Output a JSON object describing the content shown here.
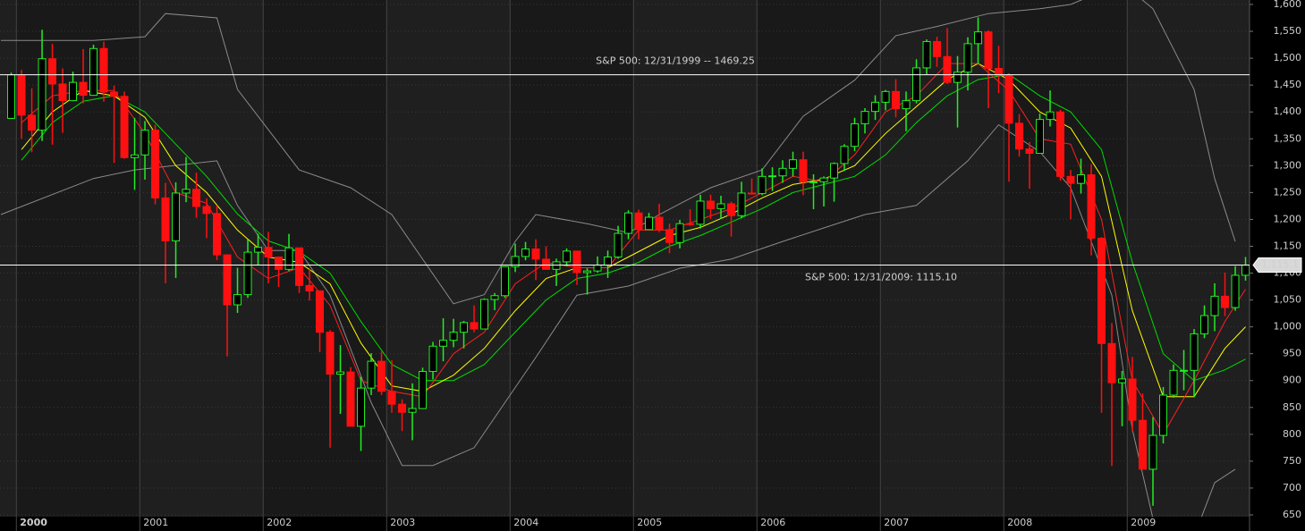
{
  "chart_data": {
    "type": "candlestick",
    "up_color": "#22ee22",
    "down_color": "#ff1010",
    "grid": true,
    "xlim": [
      -2.09,
      119.39
    ],
    "ylim": [
      650,
      1600
    ],
    "xticks": [
      {
        "value": -0.5,
        "label": "2000"
      },
      {
        "value": 11.5,
        "label": "2001"
      },
      {
        "value": 23.5,
        "label": "2002"
      },
      {
        "value": 35.5,
        "label": "2003"
      },
      {
        "value": 47.5,
        "label": "2004"
      },
      {
        "value": 59.5,
        "label": "2005"
      },
      {
        "value": 71.5,
        "label": "2006"
      },
      {
        "value": 83.5,
        "label": "2007"
      },
      {
        "value": 95.5,
        "label": "2008"
      },
      {
        "value": 107.5,
        "label": "2009"
      }
    ],
    "yticks": [
      650,
      700,
      750,
      800,
      850,
      900,
      950,
      {
        "value": 1000,
        "label": "1,000"
      },
      {
        "value": 1050,
        "label": "1,050"
      },
      {
        "value": 1100,
        "label": "1,100"
      },
      {
        "value": 1150,
        "label": "1,150"
      },
      {
        "value": 1200,
        "label": "1,200"
      },
      {
        "value": 1250,
        "label": "1,250"
      },
      {
        "value": 1300,
        "label": "1,300"
      },
      {
        "value": 1350,
        "label": "1,350"
      },
      {
        "value": 1400,
        "label": "1,400"
      },
      {
        "value": 1450,
        "label": "1,450"
      },
      {
        "value": 1500,
        "label": "1,500"
      },
      {
        "value": 1550,
        "label": "1,550"
      },
      {
        "value": 1600,
        "label": "1,600"
      }
    ],
    "annotations": [
      {
        "value": 1469.25,
        "label": "S&P 500: 12/31/1999 -- 1469.25"
      },
      {
        "value": 1115.1,
        "label": "S&P 500: 12/31/2009: 1115.10"
      }
    ],
    "last_price": {
      "value": 1115.1,
      "label": "1,115.1"
    },
    "x": [
      -1,
      0,
      1,
      2,
      3,
      4,
      5,
      6,
      7,
      8,
      9,
      10,
      11,
      12,
      13,
      14,
      15,
      16,
      17,
      18,
      19,
      20,
      21,
      22,
      23,
      24,
      25,
      26,
      27,
      28,
      29,
      30,
      31,
      32,
      33,
      34,
      35,
      36,
      37,
      38,
      39,
      40,
      41,
      42,
      43,
      44,
      45,
      46,
      47,
      48,
      49,
      50,
      51,
      52,
      53,
      54,
      55,
      56,
      57,
      58,
      59,
      60,
      61,
      62,
      63,
      64,
      65,
      66,
      67,
      68,
      69,
      70,
      71,
      72,
      73,
      74,
      75,
      76,
      77,
      78,
      79,
      80,
      81,
      82,
      83,
      84,
      85,
      86,
      87,
      88,
      89,
      90,
      91,
      92,
      93,
      94,
      95,
      96,
      97,
      98,
      99,
      100,
      101,
      102,
      103,
      104,
      105,
      106,
      107,
      108,
      109,
      110,
      111,
      112,
      113,
      114,
      115,
      116,
      117,
      118,
      119
    ],
    "open": [
      1388,
      1469,
      1394,
      1366,
      1499,
      1452,
      1421,
      1455,
      1431,
      1518,
      1437,
      1429,
      1315,
      1320,
      1366,
      1240,
      1160,
      1249,
      1256,
      1224,
      1211,
      1134,
      1041,
      1060,
      1139,
      1148,
      1130,
      1107,
      1147,
      1077,
      1067,
      990,
      912,
      916,
      815,
      886,
      936,
      880,
      856,
      841,
      848,
      917,
      964,
      975,
      990,
      1008,
      996,
      1051,
      1058,
      1112,
      1131,
      1145,
      1126,
      1107,
      1121,
      1141,
      1101,
      1104,
      1115,
      1130,
      1174,
      1212,
      1181,
      1204,
      1181,
      1157,
      1192,
      1191,
      1234,
      1220,
      1229,
      1207,
      1249,
      1248,
      1280,
      1281,
      1295,
      1311,
      1270,
      1270,
      1277,
      1304,
      1336,
      1378,
      1401,
      1418,
      1438,
      1406,
      1421,
      1482,
      1531,
      1503,
      1455,
      1474,
      1527,
      1549,
      1481,
      1468,
      1379,
      1331,
      1323,
      1386,
      1400,
      1280,
      1267,
      1283,
      1165,
      969,
      896,
      903,
      826,
      735,
      798,
      873,
      919,
      919,
      987,
      1021,
      1057,
      1036,
      1096
    ],
    "high": [
      1473,
      1478,
      1444,
      1553,
      1527,
      1481,
      1475,
      1517,
      1525,
      1531,
      1449,
      1438,
      1389,
      1383,
      1376,
      1268,
      1269,
      1316,
      1287,
      1239,
      1226,
      1135,
      1110,
      1163,
      1173,
      1177,
      1130,
      1173,
      1147,
      1107,
      1067,
      994,
      966,
      925,
      907,
      951,
      954,
      938,
      865,
      895,
      924,
      972,
      1016,
      1015,
      1011,
      1040,
      1053,
      1063,
      1112,
      1155,
      1158,
      1163,
      1150,
      1127,
      1146,
      1141,
      1109,
      1131,
      1142,
      1188,
      1217,
      1218,
      1212,
      1229,
      1192,
      1199,
      1219,
      1246,
      1246,
      1244,
      1233,
      1270,
      1276,
      1295,
      1297,
      1310,
      1326,
      1326,
      1284,
      1280,
      1306,
      1340,
      1389,
      1407,
      1431,
      1441,
      1461,
      1438,
      1498,
      1535,
      1540,
      1556,
      1504,
      1539,
      1576,
      1552,
      1523,
      1472,
      1396,
      1344,
      1397,
      1440,
      1404,
      1292,
      1313,
      1303,
      1167,
      1007,
      918,
      944,
      876,
      832,
      888,
      930,
      957,
      996,
      1040,
      1081,
      1101,
      1113,
      1130
    ],
    "low": [
      1387,
      1350,
      1325,
      1346,
      1339,
      1361,
      1420,
      1416,
      1431,
      1419,
      1305,
      1313,
      1255,
      1274,
      1228,
      1081,
      1091,
      1232,
      1203,
      1165,
      1124,
      945,
      1026,
      1054,
      1115,
      1081,
      1074,
      1104,
      1063,
      1049,
      953,
      775,
      838,
      815,
      769,
      873,
      873,
      840,
      806,
      789,
      847,
      902,
      936,
      962,
      960,
      990,
      996,
      1031,
      1054,
      1102,
      1124,
      1087,
      1107,
      1076,
      1113,
      1078,
      1060,
      1101,
      1091,
      1127,
      1163,
      1163,
      1180,
      1176,
      1137,
      1146,
      1188,
      1183,
      1201,
      1201,
      1168,
      1202,
      1246,
      1245,
      1253,
      1268,
      1280,
      1245,
      1219,
      1224,
      1233,
      1290,
      1327,
      1360,
      1385,
      1403,
      1390,
      1364,
      1416,
      1470,
      1484,
      1452,
      1371,
      1440,
      1489,
      1407,
      1435,
      1270,
      1317,
      1257,
      1323,
      1373,
      1272,
      1200,
      1248,
      1133,
      840,
      741,
      815,
      806,
      735,
      667,
      783,
      868,
      882,
      869,
      979,
      992,
      1020,
      1030,
      1086
    ],
    "close": [
      1469,
      1394,
      1366,
      1499,
      1452,
      1421,
      1455,
      1431,
      1518,
      1437,
      1429,
      1315,
      1320,
      1366,
      1240,
      1160,
      1249,
      1256,
      1224,
      1211,
      1134,
      1041,
      1060,
      1139,
      1148,
      1130,
      1107,
      1147,
      1077,
      1067,
      990,
      912,
      916,
      815,
      886,
      936,
      880,
      856,
      841,
      848,
      917,
      964,
      975,
      990,
      1008,
      996,
      1051,
      1058,
      1112,
      1131,
      1145,
      1126,
      1107,
      1121,
      1141,
      1101,
      1104,
      1115,
      1130,
      1174,
      1212,
      1181,
      1204,
      1181,
      1157,
      1192,
      1191,
      1234,
      1220,
      1229,
      1207,
      1249,
      1248,
      1280,
      1281,
      1295,
      1311,
      1270,
      1270,
      1277,
      1304,
      1336,
      1378,
      1401,
      1418,
      1438,
      1406,
      1421,
      1482,
      1531,
      1503,
      1455,
      1474,
      1527,
      1549,
      1481,
      1468,
      1379,
      1331,
      1323,
      1386,
      1400,
      1280,
      1267,
      1283,
      1165,
      969,
      896,
      903,
      826,
      735,
      798,
      873,
      919,
      919,
      987,
      1021,
      1057,
      1036,
      1096,
      1115
    ],
    "overlays": [
      {
        "color": "#8a8a8a",
        "x": [
          -2,
          7,
          12,
          14,
          19,
          21,
          27,
          32,
          36,
          39,
          42,
          45,
          48,
          50,
          55,
          59,
          62,
          67,
          72,
          76,
          81,
          85,
          89,
          94,
          99,
          102,
          107,
          110,
          114,
          116,
          118
        ],
        "values": [
          1533,
          1533,
          1540,
          1583,
          1575,
          1442,
          1292,
          1259,
          1209,
          1126,
          1043,
          1060,
          1159,
          1209,
          1192,
          1175,
          1209,
          1259,
          1292,
          1392,
          1459,
          1542,
          1559,
          1583,
          1592,
          1600,
          1640,
          1592,
          1442,
          1276,
          1159
        ]
      },
      {
        "color": "#8a8a8a",
        "x": [
          -2,
          7,
          11,
          19,
          21,
          24,
          27,
          30,
          34,
          37,
          40,
          44,
          47,
          50,
          54,
          59,
          64,
          69,
          74,
          78,
          82,
          87,
          92,
          95,
          99,
          102,
          106,
          108,
          110,
          114,
          116,
          118
        ],
        "values": [
          1209,
          1276,
          1292,
          1309,
          1226,
          1142,
          1142,
          1059,
          859,
          742,
          742,
          775,
          859,
          943,
          1059,
          1076,
          1109,
          1126,
          1159,
          1184,
          1209,
          1226,
          1309,
          1376,
          1326,
          1259,
          1059,
          809,
          643,
          610,
          710,
          735
        ]
      },
      {
        "color": "#00dd00",
        "x": [
          0,
          3,
          6,
          9,
          12,
          15,
          18,
          21,
          24,
          27,
          30,
          33,
          36,
          39,
          42,
          45,
          48,
          51,
          54,
          57,
          60,
          63,
          66,
          69,
          72,
          75,
          78,
          81,
          84,
          87,
          90,
          93,
          96,
          99,
          102,
          105,
          108,
          111,
          114,
          117,
          119
        ],
        "values": [
          1310,
          1380,
          1420,
          1430,
          1400,
          1340,
          1280,
          1210,
          1160,
          1140,
          1100,
          1010,
          930,
          900,
          900,
          930,
          990,
          1050,
          1090,
          1100,
          1120,
          1150,
          1170,
          1195,
          1220,
          1250,
          1265,
          1280,
          1320,
          1380,
          1430,
          1460,
          1470,
          1430,
          1400,
          1330,
          1120,
          950,
          900,
          920,
          940
        ]
      },
      {
        "color": "#ffff00",
        "x": [
          0,
          3,
          6,
          9,
          12,
          15,
          18,
          21,
          24,
          27,
          30,
          33,
          36,
          39,
          42,
          45,
          48,
          51,
          54,
          57,
          60,
          63,
          66,
          69,
          72,
          75,
          78,
          81,
          84,
          87,
          90,
          93,
          96,
          99,
          102,
          105,
          108,
          111,
          114,
          117,
          119
        ],
        "values": [
          1330,
          1400,
          1440,
          1430,
          1390,
          1300,
          1250,
          1180,
          1130,
          1120,
          1080,
          970,
          890,
          880,
          910,
          960,
          1030,
          1090,
          1110,
          1110,
          1140,
          1170,
          1185,
          1210,
          1240,
          1265,
          1275,
          1300,
          1360,
          1410,
          1460,
          1490,
          1460,
          1400,
          1370,
          1280,
          1030,
          870,
          870,
          960,
          1000
        ]
      },
      {
        "color": "#ff2020",
        "x": [
          0,
          3,
          6,
          9,
          12,
          15,
          18,
          21,
          24,
          27,
          30,
          33,
          36,
          39,
          42,
          45,
          48,
          51,
          54,
          57,
          60,
          63,
          66,
          69,
          72,
          75,
          78,
          81,
          84,
          87,
          90,
          93,
          96,
          99,
          102,
          105,
          108,
          111,
          114,
          117,
          119
        ],
        "values": [
          1380,
          1430,
          1440,
          1440,
          1360,
          1250,
          1230,
          1130,
          1090,
          1110,
          1040,
          900,
          880,
          870,
          950,
          990,
          1080,
          1120,
          1110,
          1110,
          1180,
          1180,
          1200,
          1220,
          1250,
          1280,
          1270,
          1320,
          1400,
          1430,
          1490,
          1490,
          1440,
          1350,
          1340,
          1200,
          900,
          800,
          900,
          1010,
          1070
        ]
      }
    ]
  }
}
